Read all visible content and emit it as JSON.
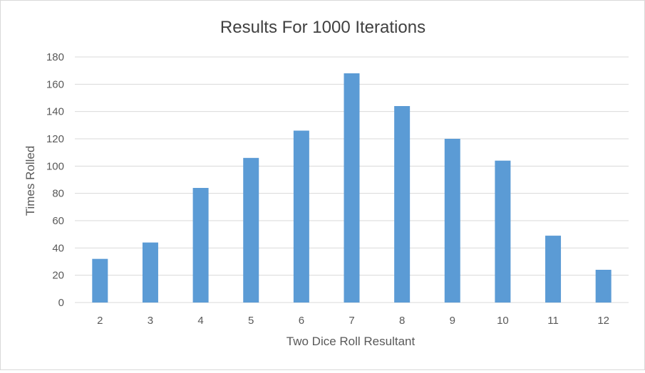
{
  "chart_data": {
    "type": "bar",
    "title": "Results For 1000 Iterations",
    "xlabel": "Two Dice Roll Resultant",
    "ylabel": "Times Rolled",
    "categories": [
      "2",
      "3",
      "4",
      "5",
      "6",
      "7",
      "8",
      "9",
      "10",
      "11",
      "12"
    ],
    "series": [
      {
        "values": [
          32,
          44,
          84,
          106,
          126,
          168,
          144,
          120,
          104,
          49,
          24
        ]
      }
    ],
    "ylim": [
      0,
      180
    ],
    "yticks": [
      "0",
      "20",
      "40",
      "60",
      "80",
      "100",
      "120",
      "140",
      "160",
      "180"
    ],
    "grid": true,
    "legend": "none"
  },
  "colors": {
    "bar": "#5b9bd5",
    "grid": "#d9d9d9",
    "text": "#595959",
    "title": "#404040"
  }
}
